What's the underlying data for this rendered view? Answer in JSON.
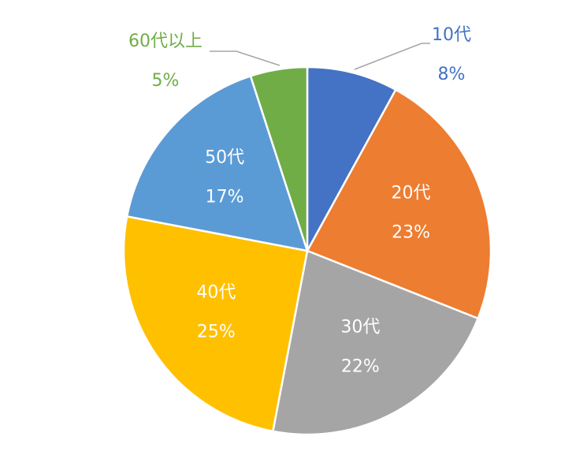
{
  "chart_data": {
    "type": "pie",
    "categories": [
      "10代",
      "20代",
      "30代",
      "40代",
      "50代",
      "60代以上"
    ],
    "values": [
      8,
      23,
      22,
      25,
      17,
      5
    ],
    "value_labels": [
      "8%",
      "23%",
      "22%",
      "25%",
      "17%",
      "5%"
    ],
    "colors": [
      "#4472c4",
      "#ed7d31",
      "#a5a5a5",
      "#ffc000",
      "#5b9bd5",
      "#70ad47"
    ]
  }
}
